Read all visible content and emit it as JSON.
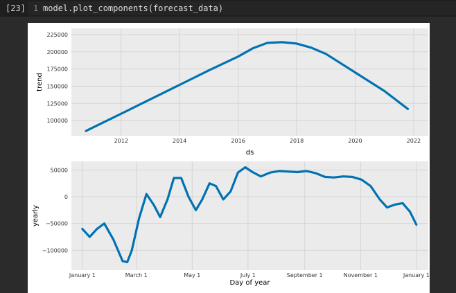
{
  "cell": {
    "exec_count": "[23]",
    "line_number": "1",
    "code": "model.plot_components(forecast_data)"
  },
  "chart_data": [
    {
      "type": "line",
      "xlabel": "ds",
      "ylabel": "trend",
      "xlim": [
        2010.3,
        2022.5
      ],
      "ylim": [
        78000,
        234000
      ],
      "x_ticks": [
        2012,
        2014,
        2016,
        2018,
        2020,
        2022
      ],
      "x_tick_labels": [
        "2012",
        "2014",
        "2016",
        "2018",
        "2020",
        "2022"
      ],
      "y_ticks": [
        100000,
        125000,
        150000,
        175000,
        200000,
        225000
      ],
      "y_tick_labels": [
        "100000",
        "125000",
        "150000",
        "175000",
        "200000",
        "225000"
      ],
      "grid": true,
      "line_color": "#0072B2",
      "series": [
        {
          "x": [
            2010.8,
            2012,
            2013,
            2014,
            2015,
            2016,
            2016.5,
            2017,
            2017.5,
            2018,
            2018.5,
            2019,
            2020,
            2021,
            2021.8
          ],
          "y": [
            85000,
            110000,
            131000,
            152000,
            173000,
            193000,
            205000,
            213000,
            214000,
            212000,
            206000,
            197000,
            170000,
            143000,
            117000
          ]
        }
      ]
    },
    {
      "type": "line",
      "xlabel": "Day of year",
      "ylabel": "yearly",
      "xlim": [
        -12,
        378
      ],
      "ylim": [
        -137000,
        66000
      ],
      "x_ticks": [
        0,
        59,
        120,
        181,
        243,
        304,
        365
      ],
      "x_tick_labels": [
        "January 1",
        "March 1",
        "May 1",
        "July 1",
        "September 1",
        "November 1",
        "January 1"
      ],
      "y_ticks": [
        -100000,
        -50000,
        0,
        50000
      ],
      "y_tick_labels": [
        "−100000",
        "−50000",
        "0",
        "50000"
      ],
      "grid": true,
      "line_color": "#0072B2",
      "series": [
        {
          "x": [
            0,
            8,
            16,
            24,
            34,
            44,
            49,
            54,
            62,
            70,
            78,
            85,
            93,
            100,
            108,
            116,
            124,
            131,
            139,
            146,
            154,
            162,
            170,
            178,
            186,
            195,
            205,
            215,
            225,
            235,
            245,
            255,
            265,
            275,
            285,
            295,
            305,
            315,
            325,
            333,
            341,
            350,
            358,
            365
          ],
          "y": [
            -60000,
            -75000,
            -60000,
            -50000,
            -80000,
            -120000,
            -122000,
            -100000,
            -40000,
            5000,
            -15000,
            -38000,
            -5000,
            35000,
            35000,
            0,
            -25000,
            -5000,
            25000,
            20000,
            -5000,
            10000,
            45000,
            55000,
            46000,
            38000,
            45000,
            48000,
            47000,
            46000,
            48000,
            44000,
            37000,
            36000,
            38000,
            37000,
            32000,
            20000,
            -5000,
            -20000,
            -15000,
            -12000,
            -28000,
            -52000
          ]
        }
      ]
    }
  ]
}
